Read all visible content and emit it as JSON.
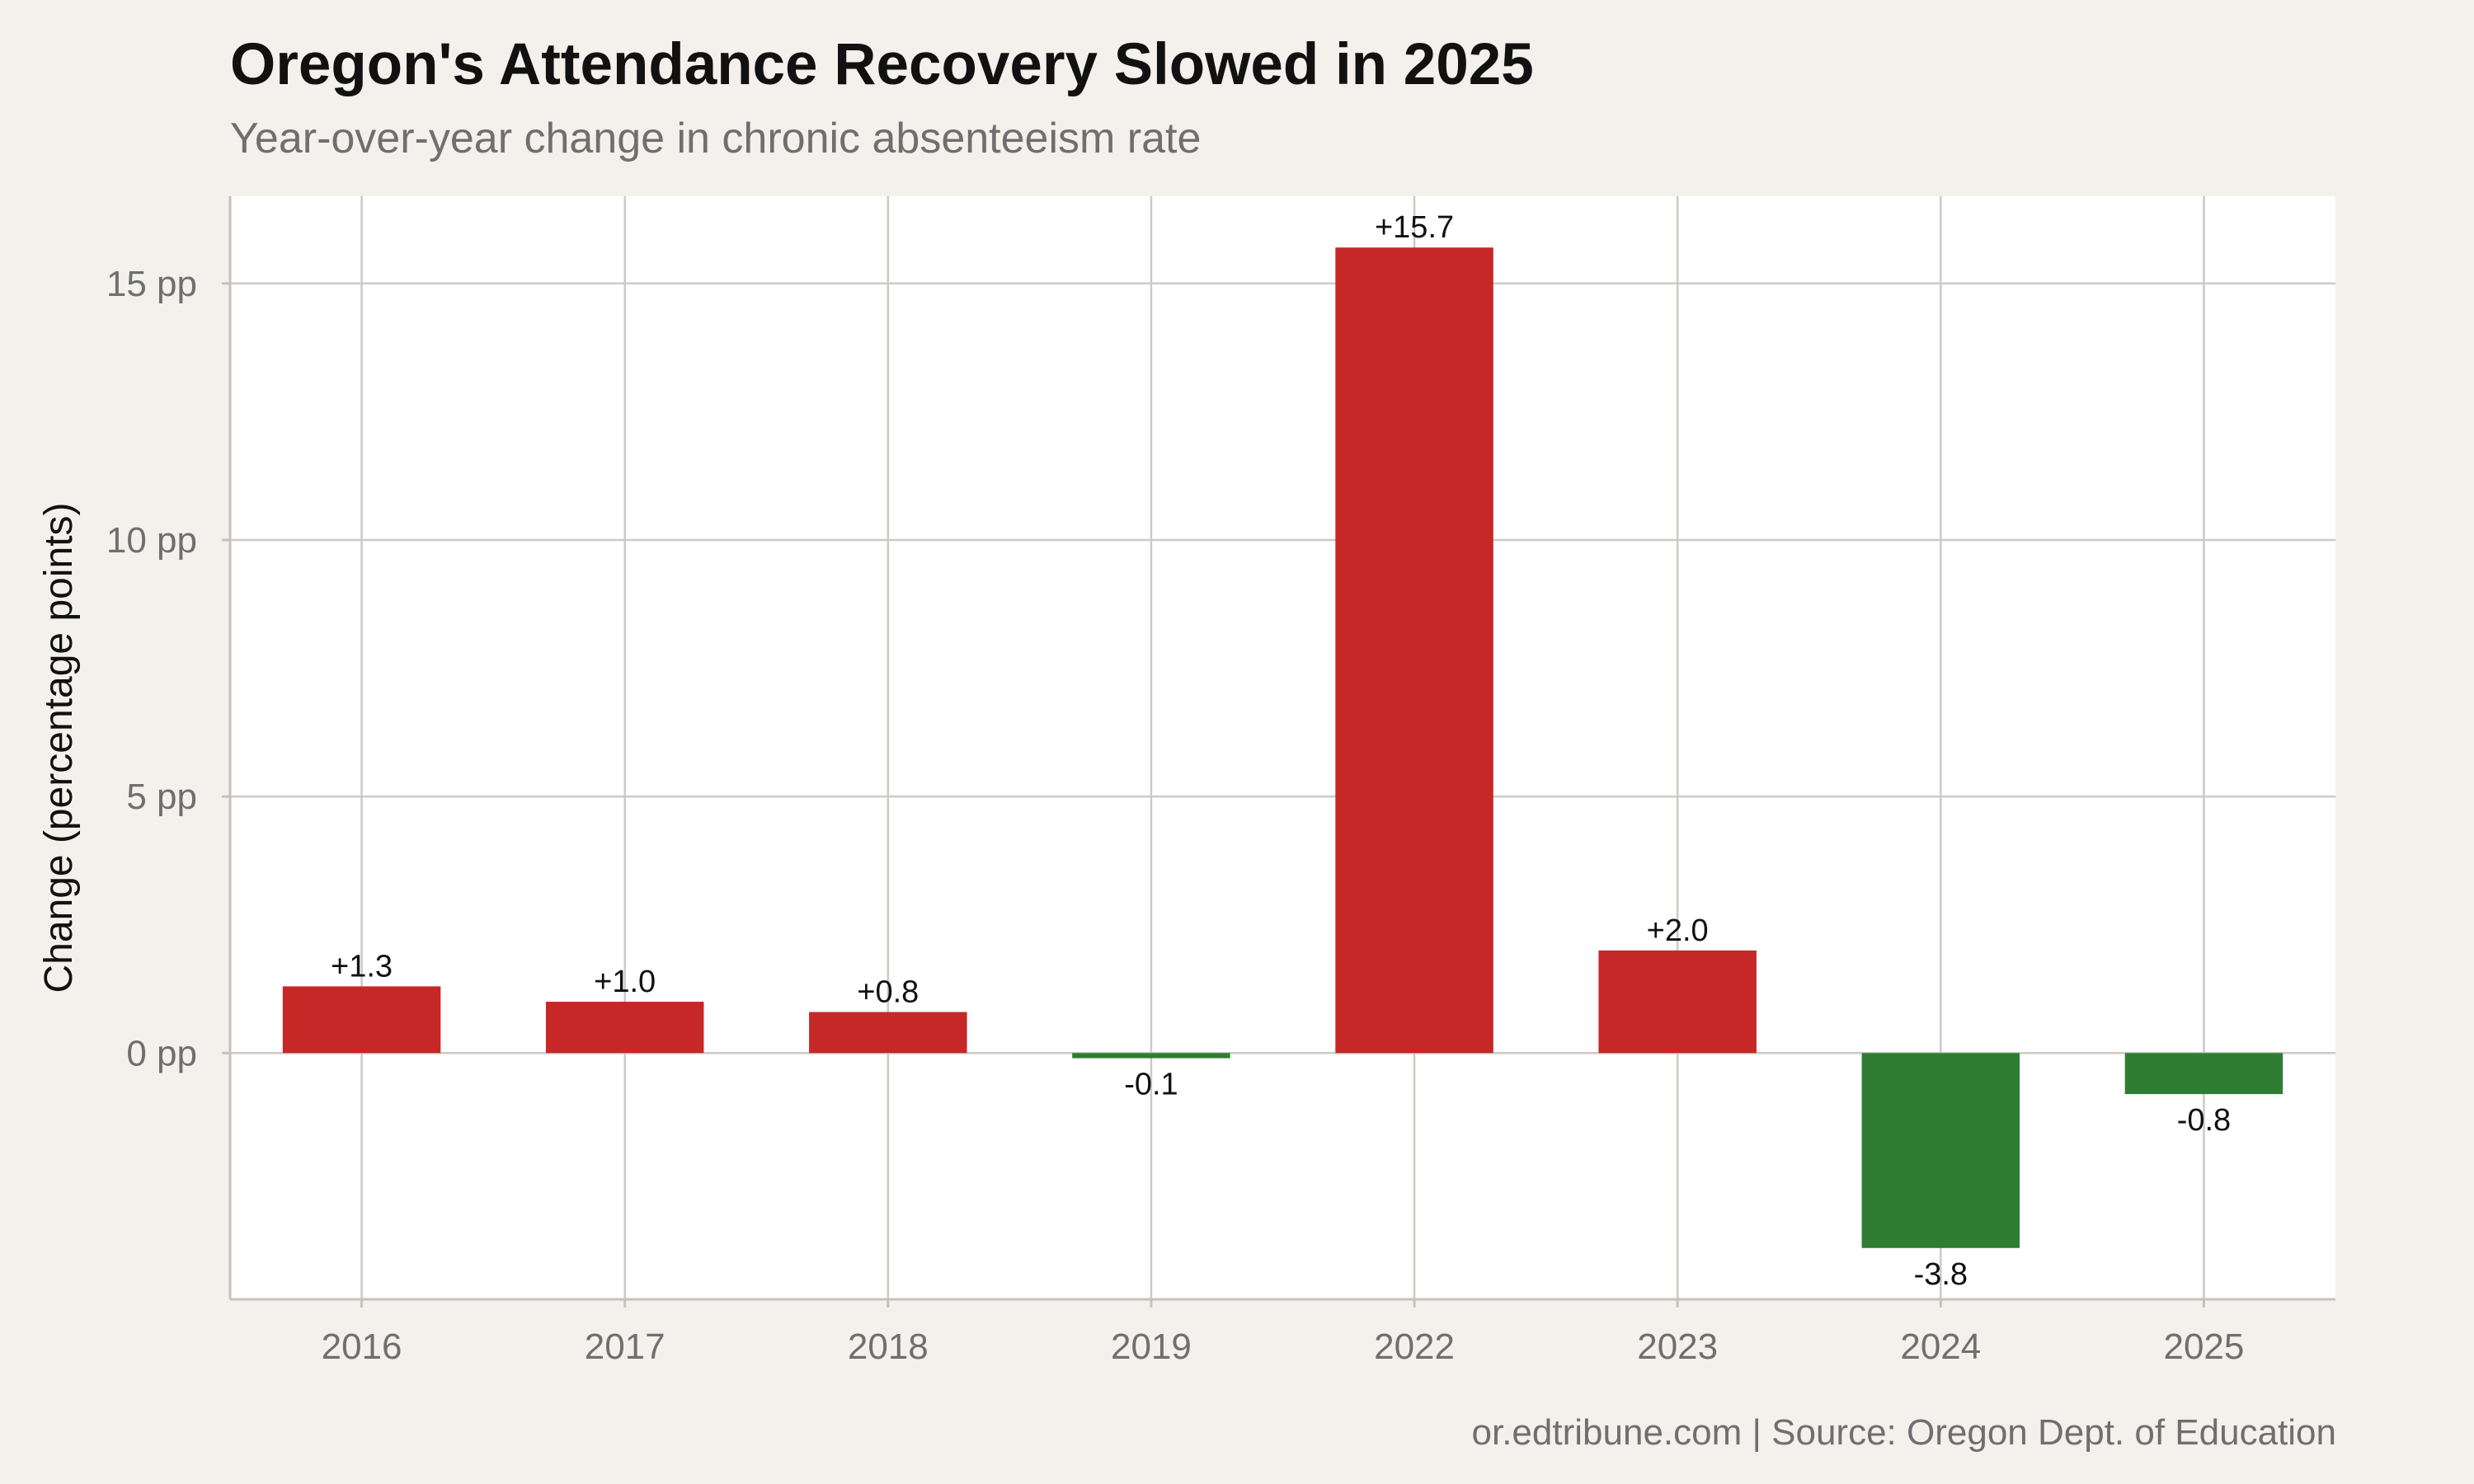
{
  "colors": {
    "increase": "#c62828",
    "decrease": "#2e7d32",
    "background": "#f4f1ec",
    "panel": "#ffffff"
  },
  "header": {
    "title": "Oregon's Attendance Recovery Slowed in 2025",
    "subtitle": "Year-over-year change in chronic absenteeism rate"
  },
  "footer": {
    "caption": "or.edtribune.com | Source: Oregon Dept. of Education"
  },
  "chart_data": {
    "type": "bar",
    "title": "Oregon's Attendance Recovery Slowed in 2025",
    "subtitle": "Year-over-year change in chronic absenteeism rate",
    "xlabel": "",
    "ylabel": "Change (percentage points)",
    "categories": [
      "2016",
      "2017",
      "2018",
      "2019",
      "2022",
      "2023",
      "2024",
      "2025"
    ],
    "values": [
      1.3,
      1.0,
      0.8,
      -0.1,
      15.7,
      2.0,
      -3.8,
      -0.8
    ],
    "data_labels": [
      "+1.3",
      "+1.0",
      "+0.8",
      "-0.1",
      "+15.7",
      "+2.0",
      "-3.8",
      "-0.8"
    ],
    "yticks": [
      0,
      5,
      10,
      15
    ],
    "ytick_labels": [
      "0 pp",
      "5 pp",
      "10 pp",
      "15 pp"
    ],
    "ylim": [
      -4.8,
      16.7
    ],
    "grid": true,
    "legend": "none"
  }
}
